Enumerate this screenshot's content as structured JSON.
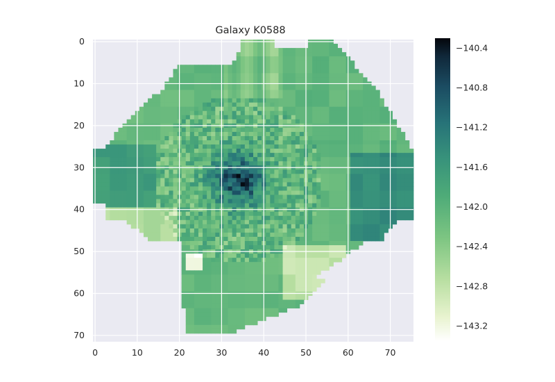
{
  "chart_data": {
    "type": "heatmap",
    "title": "Galaxy K0588",
    "xlabel": "",
    "ylabel": "",
    "xlim": [
      -0.5,
      75.5
    ],
    "ylim": [
      71.5,
      -0.5
    ],
    "x_ticks": [
      0,
      10,
      20,
      30,
      40,
      50,
      60,
      70
    ],
    "y_ticks": [
      0,
      10,
      20,
      30,
      40,
      50,
      60,
      70
    ],
    "grid": true,
    "grid_color": "#ffffff",
    "background_color": "#eaeaf2",
    "masked_edge_color": "#a0a0a0",
    "colormap": "cubehelix-green (light yellow-green to near black)",
    "colorbar": {
      "vmin": -143.35,
      "vmax": -140.3,
      "ticks": [
        -140.4,
        -140.8,
        -141.2,
        -141.6,
        -142.0,
        -142.4,
        -142.8,
        -143.2
      ],
      "tick_labels": [
        "−140.4",
        "−140.8",
        "−141.2",
        "−141.6",
        "−142.0",
        "−142.4",
        "−142.8",
        "−143.2"
      ],
      "placement": "right"
    },
    "grid_shape": [
      72,
      76
    ],
    "regions": [
      {
        "value": -140.4,
        "description": "darkest core near x≈34, y≈32"
      },
      {
        "value": -141.4,
        "description": "dark teal band on east side x≈62-75, y≈28-45"
      },
      {
        "value": -141.6,
        "description": "teal region on west side x≈0-15, y≈25-40"
      },
      {
        "value": -142.0,
        "description": "medium green outer regions"
      },
      {
        "value": -142.8,
        "description": "pale green south region x≈45-60, y≈50-60"
      },
      {
        "value": -143.3,
        "description": "white patch near x≈23, y≈52"
      }
    ]
  }
}
